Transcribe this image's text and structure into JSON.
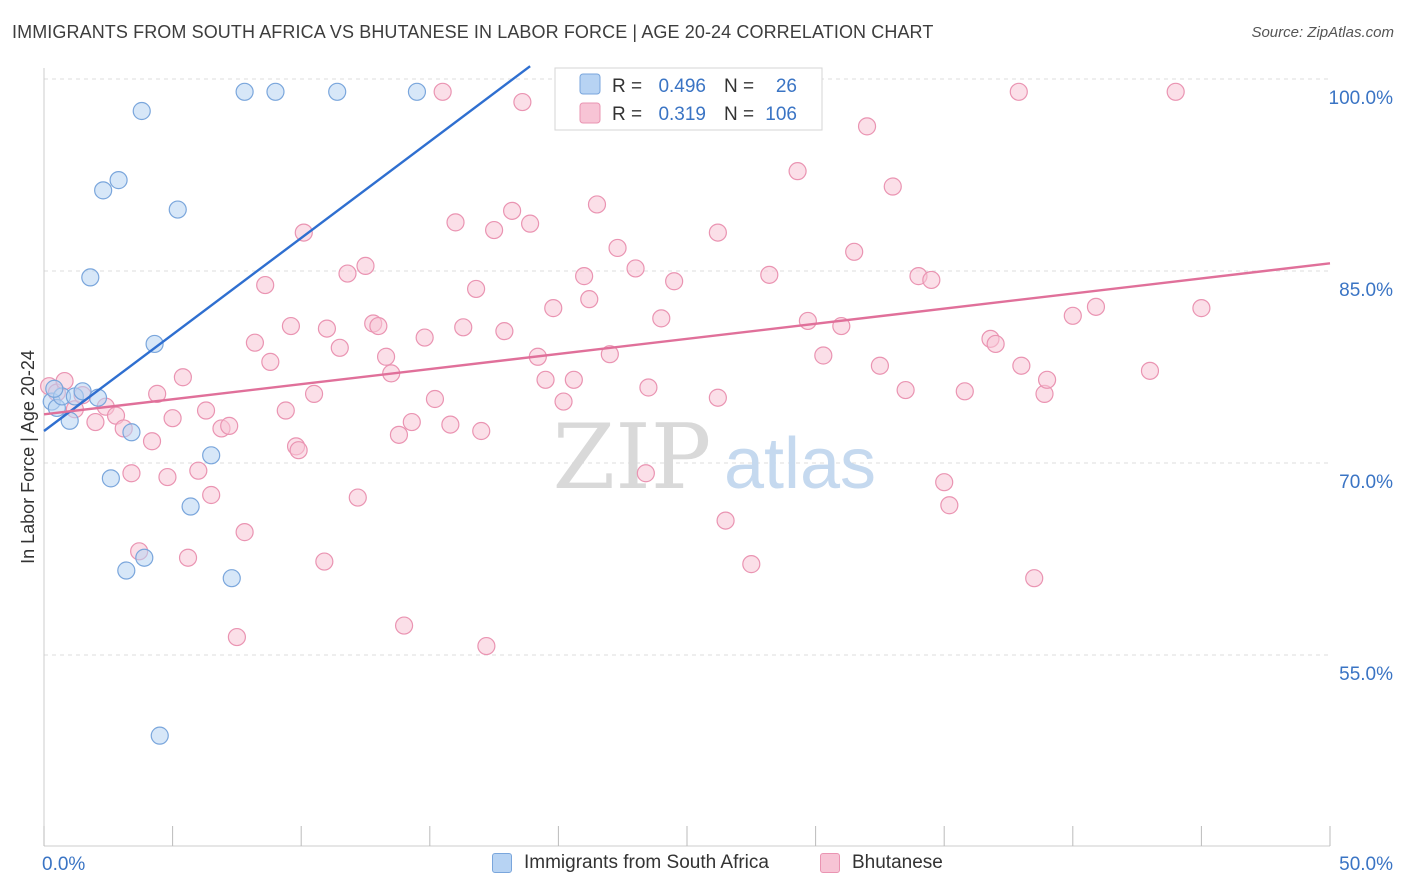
{
  "title": "IMMIGRANTS FROM SOUTH AFRICA VS BHUTANESE IN LABOR FORCE | AGE 20-24 CORRELATION CHART",
  "source": "Source: ZipAtlas.com",
  "watermark": {
    "zip": "ZIP",
    "atlas": "atlas"
  },
  "colors": {
    "blue_fill": "#b7d3f3",
    "blue_stroke": "#7aa6dc",
    "blue_line": "#2f6fd0",
    "pink_fill": "#f7c4d5",
    "pink_stroke": "#ea94b2",
    "pink_line": "#e0709a",
    "axis_label": "#3a74c4",
    "grid": "#dddddd"
  },
  "legend": {
    "rows": [
      {
        "r_label": "R =",
        "r_value": "0.496",
        "n_label": "N =",
        "n_value": "26"
      },
      {
        "r_label": "R =",
        "r_value": "0.319",
        "n_label": "N =",
        "n_value": "106"
      }
    ]
  },
  "chart_data": {
    "type": "scatter",
    "title": "IMMIGRANTS FROM SOUTH AFRICA VS BHUTANESE IN LABOR FORCE | AGE 20-24 CORRELATION CHART",
    "xlabel": "",
    "ylabel": "In Labor Force | Age 20-24",
    "xlim": [
      0,
      50
    ],
    "ylim": [
      40,
      101
    ],
    "x_tick_labels": [
      "0.0%",
      "50.0%"
    ],
    "y_ticks": [
      55,
      70,
      85,
      100
    ],
    "y_tick_labels": [
      "55.0%",
      "70.0%",
      "85.0%",
      "100.0%"
    ],
    "grid": true,
    "legend_position": "top-center",
    "series": [
      {
        "name": "Immigrants from South Africa",
        "color": "#7aa6dc",
        "trend": {
          "x": [
            0,
            18.9
          ],
          "y": [
            72.5,
            101
          ]
        },
        "points": [
          [
            0.3,
            74.8
          ],
          [
            0.5,
            74.3
          ],
          [
            0.7,
            75.2
          ],
          [
            1.0,
            73.3
          ],
          [
            1.2,
            75.2
          ],
          [
            1.5,
            75.6
          ],
          [
            2.1,
            75.1
          ],
          [
            2.3,
            91.3
          ],
          [
            2.6,
            68.8
          ],
          [
            2.9,
            92.1
          ],
          [
            3.2,
            61.6
          ],
          [
            3.4,
            72.4
          ],
          [
            3.8,
            97.5
          ],
          [
            3.9,
            62.6
          ],
          [
            4.3,
            79.3
          ],
          [
            4.5,
            48.7
          ],
          [
            5.2,
            89.8
          ],
          [
            5.7,
            66.6
          ],
          [
            6.5,
            70.6
          ],
          [
            7.3,
            61.0
          ],
          [
            7.8,
            99.0
          ],
          [
            9.0,
            99.0
          ],
          [
            11.4,
            99.0
          ],
          [
            14.5,
            99.0
          ],
          [
            1.8,
            84.5
          ],
          [
            0.4,
            75.8
          ]
        ]
      },
      {
        "name": "Bhutanese",
        "color": "#ea94b2",
        "trend": {
          "x": [
            0,
            50
          ],
          "y": [
            73.8,
            85.6
          ]
        },
        "points": [
          [
            0.2,
            76.0
          ],
          [
            0.5,
            75.5
          ],
          [
            0.8,
            76.4
          ],
          [
            1.2,
            74.2
          ],
          [
            1.5,
            75.3
          ],
          [
            2.0,
            73.2
          ],
          [
            2.4,
            74.4
          ],
          [
            2.8,
            73.7
          ],
          [
            3.1,
            72.7
          ],
          [
            3.4,
            69.2
          ],
          [
            3.7,
            63.1
          ],
          [
            4.2,
            71.7
          ],
          [
            4.4,
            75.4
          ],
          [
            4.8,
            68.9
          ],
          [
            5.0,
            73.5
          ],
          [
            5.4,
            76.7
          ],
          [
            5.6,
            62.6
          ],
          [
            6.0,
            69.4
          ],
          [
            6.3,
            74.1
          ],
          [
            6.5,
            67.5
          ],
          [
            6.9,
            72.7
          ],
          [
            7.2,
            72.9
          ],
          [
            7.5,
            56.4
          ],
          [
            7.8,
            64.6
          ],
          [
            8.2,
            79.4
          ],
          [
            8.6,
            83.9
          ],
          [
            8.8,
            77.9
          ],
          [
            9.4,
            74.1
          ],
          [
            9.6,
            80.7
          ],
          [
            9.8,
            71.3
          ],
          [
            10.1,
            88.0
          ],
          [
            10.5,
            75.4
          ],
          [
            10.9,
            62.3
          ],
          [
            11.0,
            80.5
          ],
          [
            11.5,
            79.0
          ],
          [
            11.8,
            84.8
          ],
          [
            12.2,
            67.3
          ],
          [
            12.5,
            85.4
          ],
          [
            12.8,
            80.9
          ],
          [
            13.0,
            80.7
          ],
          [
            13.3,
            78.3
          ],
          [
            13.8,
            72.2
          ],
          [
            14.0,
            57.3
          ],
          [
            14.3,
            73.2
          ],
          [
            14.8,
            79.8
          ],
          [
            15.2,
            75.0
          ],
          [
            15.5,
            99.0
          ],
          [
            15.8,
            73.0
          ],
          [
            16.0,
            88.8
          ],
          [
            16.3,
            80.6
          ],
          [
            16.8,
            83.6
          ],
          [
            17.2,
            55.7
          ],
          [
            17.5,
            88.2
          ],
          [
            17.9,
            80.3
          ],
          [
            18.2,
            89.7
          ],
          [
            18.6,
            98.2
          ],
          [
            18.9,
            88.7
          ],
          [
            19.2,
            78.3
          ],
          [
            19.5,
            76.5
          ],
          [
            19.8,
            82.1
          ],
          [
            20.2,
            74.8
          ],
          [
            20.6,
            76.5
          ],
          [
            21.0,
            84.6
          ],
          [
            21.2,
            82.8
          ],
          [
            21.5,
            90.2
          ],
          [
            22.0,
            78.5
          ],
          [
            22.3,
            86.8
          ],
          [
            23.0,
            85.2
          ],
          [
            23.4,
            69.2
          ],
          [
            23.5,
            75.9
          ],
          [
            24.0,
            81.3
          ],
          [
            24.5,
            84.2
          ],
          [
            26.2,
            88.0
          ],
          [
            26.2,
            75.1
          ],
          [
            26.5,
            65.5
          ],
          [
            27.5,
            62.1
          ],
          [
            28.2,
            84.7
          ],
          [
            29.3,
            92.8
          ],
          [
            29.7,
            81.1
          ],
          [
            30.3,
            78.4
          ],
          [
            31.0,
            80.7
          ],
          [
            31.5,
            86.5
          ],
          [
            32.0,
            96.3
          ],
          [
            32.5,
            77.6
          ],
          [
            33.0,
            91.6
          ],
          [
            33.5,
            75.7
          ],
          [
            34.0,
            84.6
          ],
          [
            34.5,
            84.3
          ],
          [
            35.0,
            68.5
          ],
          [
            35.2,
            66.7
          ],
          [
            35.8,
            75.6
          ],
          [
            36.8,
            79.7
          ],
          [
            37.0,
            79.3
          ],
          [
            37.9,
            99.0
          ],
          [
            38.0,
            77.6
          ],
          [
            38.5,
            61.0
          ],
          [
            38.9,
            75.4
          ],
          [
            39.0,
            76.5
          ],
          [
            40.0,
            81.5
          ],
          [
            40.9,
            82.2
          ],
          [
            43.0,
            77.2
          ],
          [
            44.0,
            99.0
          ],
          [
            45.0,
            82.1
          ],
          [
            17.0,
            72.5
          ],
          [
            13.5,
            77.0
          ],
          [
            9.9,
            71.0
          ]
        ]
      }
    ]
  }
}
